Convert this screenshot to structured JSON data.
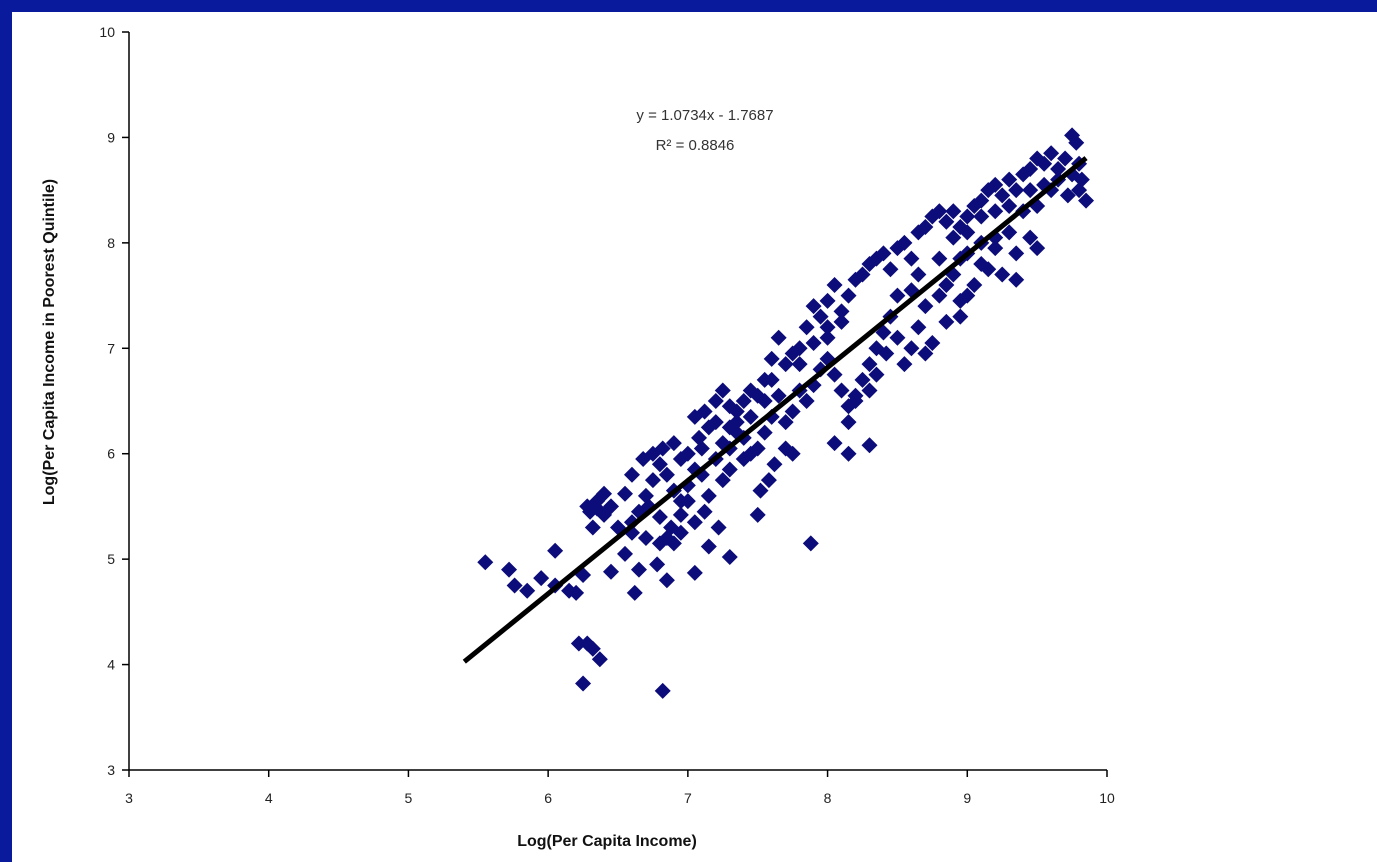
{
  "colors": {
    "frame": "#0a1a9c",
    "marker": "#0c0c7a",
    "trendline": "#000000",
    "axis": "#000000"
  },
  "chart_data": {
    "type": "scatter",
    "xlabel": "Log(Per Capita Income)",
    "ylabel": "Log(Per Capita Income in Poorest Quintile)",
    "xlim": [
      3,
      10
    ],
    "ylim": [
      3,
      10
    ],
    "xticks": [
      "3",
      "4",
      "5",
      "6",
      "7",
      "8",
      "9",
      "10"
    ],
    "yticks": [
      "3",
      "4",
      "5",
      "6",
      "7",
      "8",
      "9",
      "10"
    ],
    "grid": false,
    "trendline": {
      "slope": 1.0734,
      "intercept": -1.7687,
      "x_range": [
        5.4,
        9.85
      ]
    },
    "equation": "y = 1.0734x - 1.7687",
    "r_squared": "R² = 0.8846",
    "points": [
      [
        5.55,
        4.97
      ],
      [
        5.72,
        4.9
      ],
      [
        5.76,
        4.75
      ],
      [
        5.85,
        4.7
      ],
      [
        5.95,
        4.82
      ],
      [
        6.05,
        4.75
      ],
      [
        6.05,
        5.08
      ],
      [
        6.15,
        4.7
      ],
      [
        6.2,
        4.68
      ],
      [
        6.25,
        4.85
      ],
      [
        6.22,
        4.2
      ],
      [
        6.28,
        4.2
      ],
      [
        6.32,
        4.15
      ],
      [
        6.37,
        4.05
      ],
      [
        6.25,
        3.82
      ],
      [
        6.82,
        3.75
      ],
      [
        6.28,
        5.5
      ],
      [
        6.35,
        5.48
      ],
      [
        6.4,
        5.42
      ],
      [
        6.32,
        5.3
      ],
      [
        6.45,
        4.88
      ],
      [
        6.55,
        5.05
      ],
      [
        6.62,
        4.68
      ],
      [
        6.65,
        4.9
      ],
      [
        6.7,
        5.2
      ],
      [
        6.78,
        4.95
      ],
      [
        6.85,
        4.8
      ],
      [
        6.9,
        5.15
      ],
      [
        7.05,
        4.87
      ],
      [
        7.15,
        5.12
      ],
      [
        7.3,
        5.02
      ],
      [
        7.22,
        5.3
      ],
      [
        7.12,
        5.45
      ],
      [
        7.05,
        5.35
      ],
      [
        6.95,
        5.42
      ],
      [
        6.88,
        5.3
      ],
      [
        6.8,
        5.4
      ],
      [
        6.72,
        5.5
      ],
      [
        6.6,
        5.35
      ],
      [
        6.55,
        5.62
      ],
      [
        6.6,
        5.8
      ],
      [
        6.68,
        5.95
      ],
      [
        6.75,
        6.0
      ],
      [
        6.82,
        6.05
      ],
      [
        6.9,
        6.1
      ],
      [
        6.95,
        5.95
      ],
      [
        7.0,
        6.0
      ],
      [
        7.08,
        6.15
      ],
      [
        7.05,
        6.35
      ],
      [
        7.12,
        6.4
      ],
      [
        7.2,
        6.3
      ],
      [
        7.25,
        6.1
      ],
      [
        7.3,
        6.25
      ],
      [
        7.35,
        6.4
      ],
      [
        7.4,
        6.5
      ],
      [
        7.45,
        6.6
      ],
      [
        7.5,
        6.55
      ],
      [
        7.55,
        6.7
      ],
      [
        7.6,
        6.9
      ],
      [
        7.65,
        7.1
      ],
      [
        7.7,
        6.85
      ],
      [
        7.75,
        6.95
      ],
      [
        7.8,
        7.0
      ],
      [
        7.85,
        7.2
      ],
      [
        7.9,
        7.4
      ],
      [
        7.95,
        7.3
      ],
      [
        8.0,
        7.45
      ],
      [
        8.05,
        7.6
      ],
      [
        8.1,
        7.35
      ],
      [
        8.15,
        7.5
      ],
      [
        8.2,
        7.65
      ],
      [
        8.25,
        7.7
      ],
      [
        8.3,
        7.8
      ],
      [
        8.35,
        7.85
      ],
      [
        8.4,
        7.9
      ],
      [
        8.45,
        7.75
      ],
      [
        8.5,
        7.95
      ],
      [
        8.55,
        8.0
      ],
      [
        8.6,
        7.85
      ],
      [
        8.65,
        8.1
      ],
      [
        8.7,
        8.15
      ],
      [
        8.75,
        8.25
      ],
      [
        8.8,
        8.3
      ],
      [
        8.85,
        8.2
      ],
      [
        8.9,
        8.3
      ],
      [
        8.95,
        8.15
      ],
      [
        9.0,
        8.25
      ],
      [
        9.05,
        8.35
      ],
      [
        9.1,
        8.4
      ],
      [
        9.15,
        8.5
      ],
      [
        9.2,
        8.55
      ],
      [
        9.25,
        8.45
      ],
      [
        9.3,
        8.6
      ],
      [
        9.35,
        8.5
      ],
      [
        9.4,
        8.65
      ],
      [
        9.45,
        8.7
      ],
      [
        9.5,
        8.8
      ],
      [
        9.55,
        8.75
      ],
      [
        9.6,
        8.85
      ],
      [
        9.65,
        8.7
      ],
      [
        9.7,
        8.8
      ],
      [
        9.75,
        9.02
      ],
      [
        9.78,
        8.95
      ],
      [
        9.82,
        8.6
      ],
      [
        9.85,
        8.4
      ],
      [
        9.8,
        8.5
      ],
      [
        9.72,
        8.45
      ],
      [
        9.6,
        8.5
      ],
      [
        9.5,
        8.35
      ],
      [
        9.4,
        8.3
      ],
      [
        9.3,
        8.1
      ],
      [
        9.2,
        8.05
      ],
      [
        9.1,
        8.0
      ],
      [
        9.0,
        7.9
      ],
      [
        8.95,
        7.85
      ],
      [
        8.9,
        7.7
      ],
      [
        8.85,
        7.6
      ],
      [
        8.8,
        7.5
      ],
      [
        8.7,
        7.4
      ],
      [
        8.65,
        7.2
      ],
      [
        8.6,
        7.0
      ],
      [
        8.7,
        6.95
      ],
      [
        8.75,
        7.05
      ],
      [
        8.85,
        7.25
      ],
      [
        8.95,
        7.45
      ],
      [
        9.05,
        7.6
      ],
      [
        9.15,
        7.75
      ],
      [
        9.25,
        7.7
      ],
      [
        9.35,
        7.9
      ],
      [
        9.45,
        8.05
      ],
      [
        8.55,
        6.85
      ],
      [
        8.5,
        7.1
      ],
      [
        8.45,
        7.3
      ],
      [
        8.4,
        7.15
      ],
      [
        8.35,
        7.0
      ],
      [
        8.3,
        6.85
      ],
      [
        8.25,
        6.7
      ],
      [
        8.2,
        6.55
      ],
      [
        8.15,
        6.45
      ],
      [
        8.1,
        6.6
      ],
      [
        8.05,
        6.75
      ],
      [
        8.0,
        6.9
      ],
      [
        7.95,
        6.8
      ],
      [
        7.9,
        6.65
      ],
      [
        7.85,
        6.5
      ],
      [
        7.8,
        6.6
      ],
      [
        7.75,
        6.4
      ],
      [
        7.7,
        6.3
      ],
      [
        7.65,
        6.55
      ],
      [
        7.6,
        6.35
      ],
      [
        7.55,
        6.2
      ],
      [
        7.5,
        6.05
      ],
      [
        7.45,
        6.0
      ],
      [
        7.4,
        6.15
      ],
      [
        7.35,
        6.3
      ],
      [
        7.3,
        6.45
      ],
      [
        7.25,
        6.6
      ],
      [
        7.2,
        6.5
      ],
      [
        7.15,
        6.25
      ],
      [
        7.1,
        6.05
      ],
      [
        7.05,
        5.85
      ],
      [
        7.0,
        5.7
      ],
      [
        6.95,
        5.55
      ],
      [
        6.9,
        5.65
      ],
      [
        6.85,
        5.8
      ],
      [
        6.8,
        5.9
      ],
      [
        6.75,
        5.75
      ],
      [
        6.7,
        5.6
      ],
      [
        6.65,
        5.45
      ],
      [
        6.6,
        5.25
      ],
      [
        6.5,
        5.3
      ],
      [
        6.45,
        5.5
      ],
      [
        6.4,
        5.62
      ],
      [
        6.35,
        5.55
      ],
      [
        6.3,
        5.45
      ],
      [
        7.5,
        5.42
      ],
      [
        7.52,
        5.65
      ],
      [
        7.58,
        5.75
      ],
      [
        7.62,
        5.9
      ],
      [
        7.7,
        6.05
      ],
      [
        7.75,
        6.0
      ],
      [
        7.88,
        5.15
      ],
      [
        8.05,
        6.1
      ],
      [
        8.15,
        6.0
      ],
      [
        8.3,
        6.08
      ],
      [
        8.15,
        6.3
      ],
      [
        8.2,
        6.5
      ],
      [
        8.3,
        6.6
      ],
      [
        8.35,
        6.75
      ],
      [
        8.42,
        6.95
      ],
      [
        8.5,
        7.5
      ],
      [
        8.6,
        7.55
      ],
      [
        8.65,
        7.7
      ],
      [
        8.8,
        7.85
      ],
      [
        8.9,
        8.05
      ],
      [
        9.0,
        8.1
      ],
      [
        9.1,
        8.25
      ],
      [
        9.2,
        8.3
      ],
      [
        9.3,
        8.35
      ],
      [
        9.45,
        8.5
      ],
      [
        9.55,
        8.55
      ],
      [
        9.65,
        8.6
      ],
      [
        9.75,
        8.65
      ],
      [
        9.8,
        8.75
      ],
      [
        9.1,
        7.8
      ],
      [
        9.0,
        7.5
      ],
      [
        8.95,
        7.3
      ],
      [
        9.2,
        7.95
      ],
      [
        9.35,
        7.65
      ],
      [
        9.5,
        7.95
      ],
      [
        8.0,
        7.2
      ],
      [
        8.1,
        7.25
      ],
      [
        8.0,
        7.1
      ],
      [
        7.9,
        7.05
      ],
      [
        7.8,
        6.85
      ],
      [
        7.6,
        6.7
      ],
      [
        7.55,
        6.5
      ],
      [
        7.45,
        6.35
      ],
      [
        7.35,
        6.2
      ],
      [
        7.3,
        6.05
      ],
      [
        7.2,
        5.95
      ],
      [
        7.1,
        5.8
      ],
      [
        7.0,
        5.55
      ],
      [
        6.95,
        5.25
      ],
      [
        6.85,
        5.2
      ],
      [
        6.8,
        5.15
      ],
      [
        7.15,
        5.6
      ],
      [
        7.25,
        5.75
      ],
      [
        7.3,
        5.85
      ],
      [
        7.4,
        5.95
      ]
    ]
  }
}
